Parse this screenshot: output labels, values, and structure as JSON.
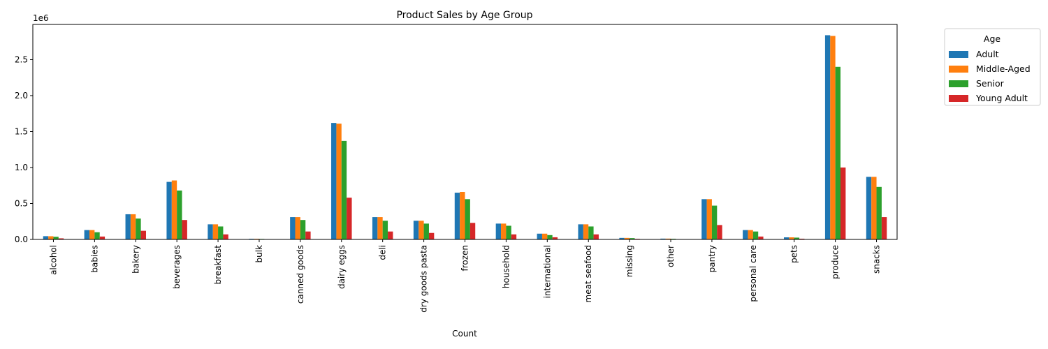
{
  "chart_data": {
    "type": "bar",
    "title": "Product Sales by Age Group",
    "xlabel": "Count",
    "ylabel": "",
    "offset_text": "1e6",
    "ylim": [
      0,
      2.99
    ],
    "yticks": [
      "0.0",
      "0.5",
      "1.0",
      "1.5",
      "2.0",
      "2.5"
    ],
    "ytick_values": [
      0,
      0.5,
      1.0,
      1.5,
      2.0,
      2.5
    ],
    "legend_title": "Age",
    "legend_position": "outside-top-right",
    "colors": [
      "#1f77b4",
      "#ff7f0e",
      "#2ca02c",
      "#d62728"
    ],
    "categories": [
      "alcohol",
      "babies",
      "bakery",
      "beverages",
      "breakfast",
      "bulk",
      "canned goods",
      "dairy eggs",
      "deli",
      "dry goods pasta",
      "frozen",
      "household",
      "international",
      "meat seafood",
      "missing",
      "other",
      "pantry",
      "personal care",
      "pets",
      "produce",
      "snacks"
    ],
    "series": [
      {
        "name": "Adult",
        "values": [
          0.045,
          0.13,
          0.35,
          0.8,
          0.21,
          0.009,
          0.31,
          1.62,
          0.31,
          0.26,
          0.65,
          0.22,
          0.08,
          0.21,
          0.021,
          0.011,
          0.56,
          0.13,
          0.029,
          2.84,
          0.87
        ]
      },
      {
        "name": "Middle-Aged",
        "values": [
          0.044,
          0.13,
          0.35,
          0.82,
          0.21,
          0.009,
          0.31,
          1.61,
          0.31,
          0.26,
          0.66,
          0.22,
          0.08,
          0.21,
          0.021,
          0.011,
          0.56,
          0.13,
          0.029,
          2.83,
          0.87
        ]
      },
      {
        "name": "Senior",
        "values": [
          0.037,
          0.1,
          0.29,
          0.68,
          0.18,
          0.007,
          0.27,
          1.37,
          0.26,
          0.22,
          0.56,
          0.19,
          0.06,
          0.18,
          0.018,
          0.009,
          0.47,
          0.11,
          0.025,
          2.4,
          0.73
        ]
      },
      {
        "name": "Young Adult",
        "values": [
          0.015,
          0.04,
          0.12,
          0.27,
          0.07,
          0.003,
          0.11,
          0.58,
          0.11,
          0.09,
          0.23,
          0.07,
          0.03,
          0.07,
          0.008,
          0.004,
          0.2,
          0.04,
          0.01,
          1.0,
          0.31
        ]
      }
    ]
  }
}
